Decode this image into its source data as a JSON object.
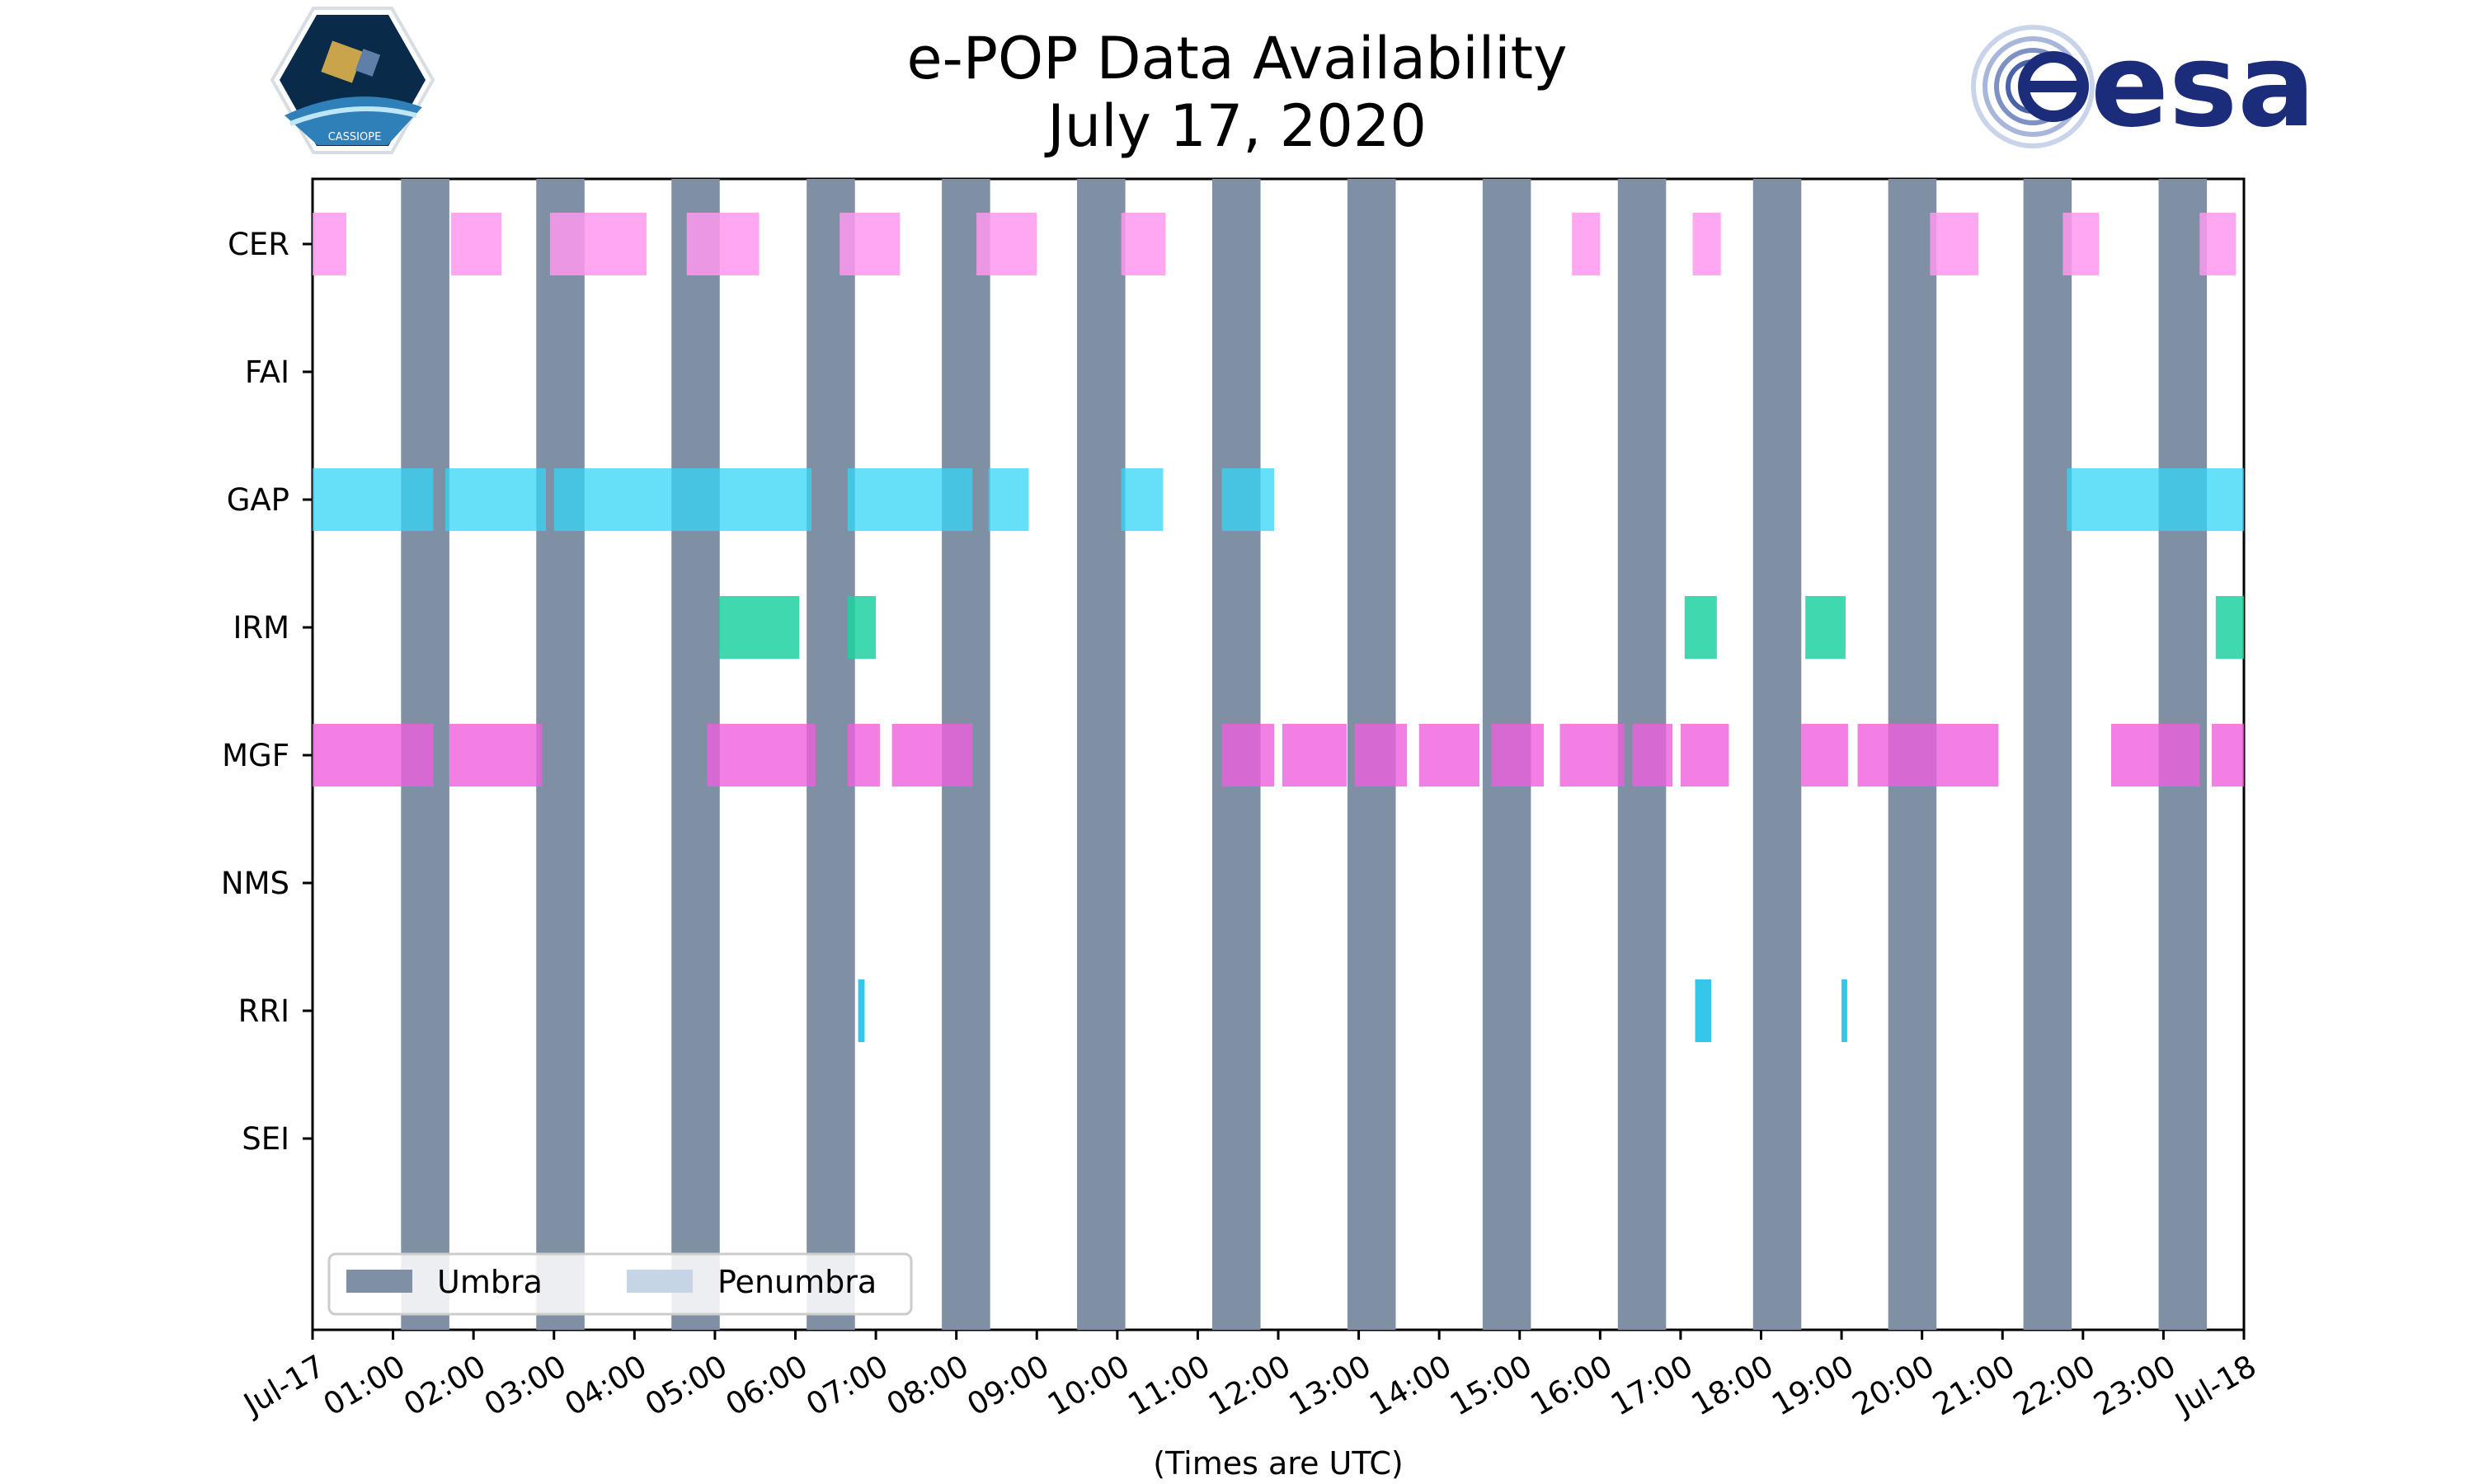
{
  "title": {
    "line1": "e-POP Data Availability",
    "line2": "July 17, 2020"
  },
  "logos": {
    "left": {
      "text": "CASSIOPE",
      "name": "cassiope-logo"
    },
    "right": {
      "text": "esa",
      "name": "esa-logo"
    }
  },
  "chart_data": {
    "type": "timeline",
    "title": "e-POP Data Availability\nJuly 17, 2020",
    "xlabel": "(Times are UTC)",
    "xlim_hours": [
      0,
      24
    ],
    "x_ticks": [
      "Jul-17",
      "01:00",
      "02:00",
      "03:00",
      "04:00",
      "05:00",
      "06:00",
      "07:00",
      "08:00",
      "09:00",
      "10:00",
      "11:00",
      "12:00",
      "13:00",
      "14:00",
      "15:00",
      "16:00",
      "17:00",
      "18:00",
      "19:00",
      "20:00",
      "21:00",
      "22:00",
      "23:00",
      "Jul-18"
    ],
    "instruments": [
      "CER",
      "FAI",
      "GAP",
      "IRM",
      "MGF",
      "NMS",
      "RRI",
      "SEI"
    ],
    "legend": [
      {
        "label": "Umbra",
        "color": "#7f90a4"
      },
      {
        "label": "Penumbra",
        "color": "#c5d5e6"
      }
    ],
    "umbra_intervals_hours": [
      [
        1.1,
        1.7
      ],
      [
        2.78,
        3.38
      ],
      [
        4.46,
        5.06
      ],
      [
        6.14,
        6.74
      ],
      [
        7.82,
        8.42
      ],
      [
        9.5,
        10.1
      ],
      [
        11.18,
        11.78
      ],
      [
        12.86,
        13.46
      ],
      [
        14.54,
        15.14
      ],
      [
        16.22,
        16.82
      ],
      [
        17.9,
        18.5
      ],
      [
        19.58,
        20.18
      ],
      [
        21.26,
        21.86
      ],
      [
        22.94,
        23.54
      ]
    ],
    "series": [
      {
        "name": "CER",
        "color": "#ff99ee",
        "opacity": 0.85,
        "intervals_hours": [
          [
            0.0,
            0.42
          ],
          [
            1.72,
            2.35
          ],
          [
            2.95,
            4.15
          ],
          [
            4.65,
            5.55
          ],
          [
            6.55,
            7.3
          ],
          [
            8.25,
            9.0
          ],
          [
            10.05,
            10.6
          ],
          [
            15.65,
            16.0
          ],
          [
            17.15,
            17.5
          ],
          [
            20.1,
            20.7
          ],
          [
            21.75,
            22.2
          ],
          [
            23.45,
            23.9
          ]
        ]
      },
      {
        "name": "FAI",
        "color": "#ff99ee",
        "opacity": 0.85,
        "intervals_hours": []
      },
      {
        "name": "GAP",
        "color": "#33d6f7",
        "opacity": 0.75,
        "intervals_hours": [
          [
            0.0,
            1.5
          ],
          [
            1.65,
            2.9
          ],
          [
            3.0,
            6.2
          ],
          [
            6.65,
            8.2
          ],
          [
            8.4,
            8.9
          ],
          [
            10.05,
            10.57
          ],
          [
            11.3,
            11.95
          ],
          [
            21.8,
            24.0
          ]
        ]
      },
      {
        "name": "IRM",
        "color": "#1fd1a0",
        "opacity": 0.85,
        "intervals_hours": [
          [
            5.05,
            6.05
          ],
          [
            6.65,
            7.0
          ],
          [
            17.05,
            17.45
          ],
          [
            18.55,
            19.05
          ],
          [
            23.65,
            24.0
          ]
        ]
      },
      {
        "name": "MGF",
        "color": "#ee5fdd",
        "opacity": 0.8,
        "intervals_hours": [
          [
            0.0,
            1.5
          ],
          [
            1.7,
            2.85
          ],
          [
            4.9,
            6.25
          ],
          [
            6.65,
            7.05
          ],
          [
            7.2,
            8.2
          ],
          [
            11.3,
            11.95
          ],
          [
            12.05,
            12.85
          ],
          [
            12.95,
            13.6
          ],
          [
            13.75,
            14.5
          ],
          [
            14.65,
            15.3
          ],
          [
            15.5,
            16.3
          ],
          [
            16.4,
            16.9
          ],
          [
            17.0,
            17.6
          ],
          [
            18.5,
            19.08
          ],
          [
            19.2,
            20.95
          ],
          [
            22.35,
            23.45
          ],
          [
            23.6,
            24.0
          ]
        ]
      },
      {
        "name": "NMS",
        "color": "#ee5fdd",
        "opacity": 0.8,
        "intervals_hours": []
      },
      {
        "name": "RRI",
        "color": "#29c4e8",
        "opacity": 0.95,
        "intervals_hours": [
          [
            6.78,
            6.86
          ],
          [
            17.18,
            17.38
          ],
          [
            19.0,
            19.07
          ]
        ]
      },
      {
        "name": "SEI",
        "color": "#29c4e8",
        "opacity": 0.95,
        "intervals_hours": []
      }
    ]
  }
}
